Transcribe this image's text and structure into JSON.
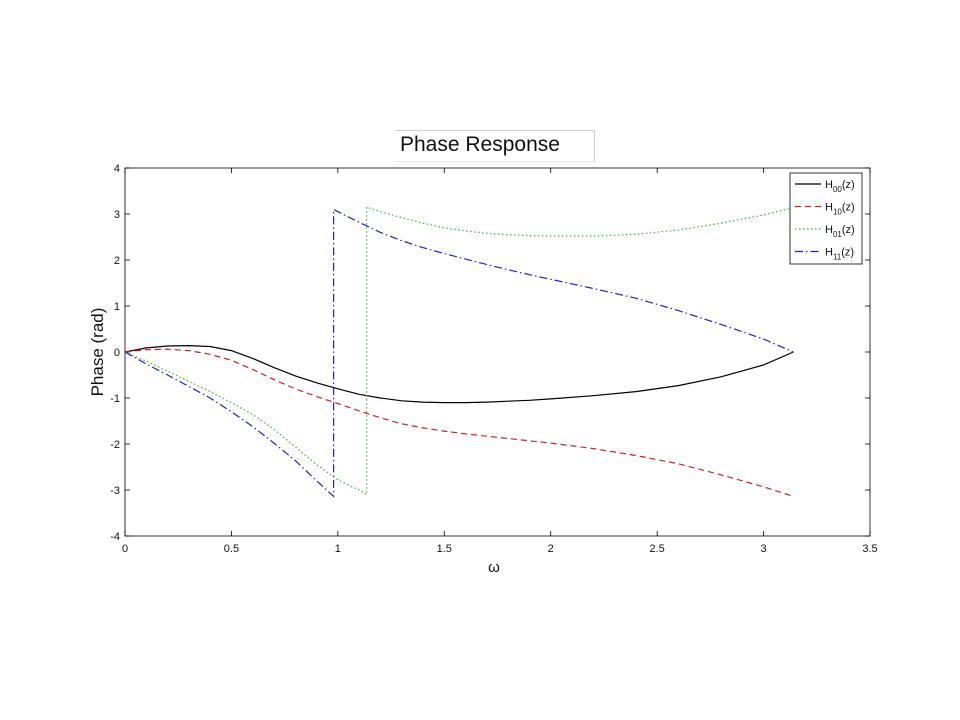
{
  "chart_data": {
    "type": "line",
    "title": "Phase Response",
    "xlabel": "ω",
    "ylabel": "Phase (rad)",
    "xlim": [
      0,
      3.5
    ],
    "ylim": [
      -4,
      4
    ],
    "xticks": [
      "0",
      "0.5",
      "1",
      "1.5",
      "2",
      "2.5",
      "3",
      "3.5"
    ],
    "yticks": [
      "-4",
      "-3",
      "-2",
      "-1",
      "0",
      "1",
      "2",
      "3",
      "4"
    ],
    "grid": false,
    "legend_position": "top-right",
    "series": [
      {
        "name": "H00(z)",
        "legend": {
          "base": "H",
          "sub": "00",
          "suffix": "(z)"
        },
        "color": "#000000",
        "dash": "solid",
        "x": [
          0,
          0.1,
          0.2,
          0.3,
          0.4,
          0.5,
          0.6,
          0.7,
          0.8,
          0.9,
          1.0,
          1.1,
          1.2,
          1.3,
          1.4,
          1.5,
          1.6,
          1.7,
          1.8,
          1.9,
          2.0,
          2.2,
          2.4,
          2.6,
          2.8,
          3.0,
          3.14
        ],
        "y": [
          0,
          0.09,
          0.13,
          0.14,
          0.12,
          0.03,
          -0.14,
          -0.34,
          -0.52,
          -0.67,
          -0.8,
          -0.92,
          -1.0,
          -1.06,
          -1.09,
          -1.1,
          -1.1,
          -1.09,
          -1.07,
          -1.05,
          -1.02,
          -0.95,
          -0.86,
          -0.73,
          -0.54,
          -0.28,
          0
        ]
      },
      {
        "name": "H10(z)",
        "legend": {
          "base": "H",
          "sub": "10",
          "suffix": "(z)"
        },
        "color": "#cc2222",
        "dash": "dashed",
        "x": [
          0,
          0.1,
          0.2,
          0.3,
          0.4,
          0.5,
          0.6,
          0.7,
          0.8,
          0.9,
          1.0,
          1.1,
          1.2,
          1.3,
          1.4,
          1.5,
          1.6,
          1.7,
          1.8,
          1.9,
          2.0,
          2.2,
          2.4,
          2.6,
          2.8,
          3.0,
          3.14
        ],
        "y": [
          0,
          0.05,
          0.06,
          0.03,
          -0.05,
          -0.18,
          -0.38,
          -0.6,
          -0.8,
          -0.97,
          -1.12,
          -1.28,
          -1.43,
          -1.56,
          -1.65,
          -1.72,
          -1.78,
          -1.83,
          -1.88,
          -1.93,
          -1.98,
          -2.1,
          -2.25,
          -2.43,
          -2.67,
          -2.93,
          -3.14
        ]
      },
      {
        "name": "H01(z)",
        "legend": {
          "base": "H",
          "sub": "01",
          "suffix": "(z)"
        },
        "color": "#33bb33",
        "dash": "dotted",
        "x": [
          0,
          0.1,
          0.2,
          0.3,
          0.4,
          0.5,
          0.6,
          0.7,
          0.8,
          0.9,
          1.0,
          1.1,
          1.135,
          1.135,
          1.2,
          1.3,
          1.4,
          1.5,
          1.6,
          1.7,
          1.8,
          1.9,
          2.0,
          2.2,
          2.4,
          2.6,
          2.8,
          3.0,
          3.14
        ],
        "y": [
          0,
          -0.2,
          -0.42,
          -0.64,
          -0.86,
          -1.1,
          -1.36,
          -1.68,
          -2.06,
          -2.45,
          -2.78,
          -3.0,
          -3.1,
          3.15,
          3.05,
          2.92,
          2.8,
          2.7,
          2.63,
          2.58,
          2.55,
          2.53,
          2.52,
          2.52,
          2.56,
          2.65,
          2.8,
          2.98,
          3.14
        ]
      },
      {
        "name": "H11(z)",
        "legend": {
          "base": "H",
          "sub": "11",
          "suffix": "(z)"
        },
        "color": "#2222cc",
        "dash": "dashdot",
        "x": [
          0,
          0.1,
          0.2,
          0.3,
          0.4,
          0.5,
          0.6,
          0.7,
          0.8,
          0.9,
          0.98,
          0.98,
          1.0,
          1.1,
          1.2,
          1.3,
          1.4,
          1.5,
          1.6,
          1.7,
          1.8,
          1.9,
          2.0,
          2.2,
          2.4,
          2.6,
          2.8,
          3.0,
          3.14
        ],
        "y": [
          0,
          -0.26,
          -0.5,
          -0.75,
          -1.0,
          -1.3,
          -1.62,
          -1.98,
          -2.36,
          -2.8,
          -3.14,
          3.1,
          3.05,
          2.82,
          2.6,
          2.42,
          2.27,
          2.14,
          2.02,
          1.9,
          1.79,
          1.68,
          1.58,
          1.38,
          1.17,
          0.9,
          0.6,
          0.28,
          0
        ]
      }
    ]
  }
}
